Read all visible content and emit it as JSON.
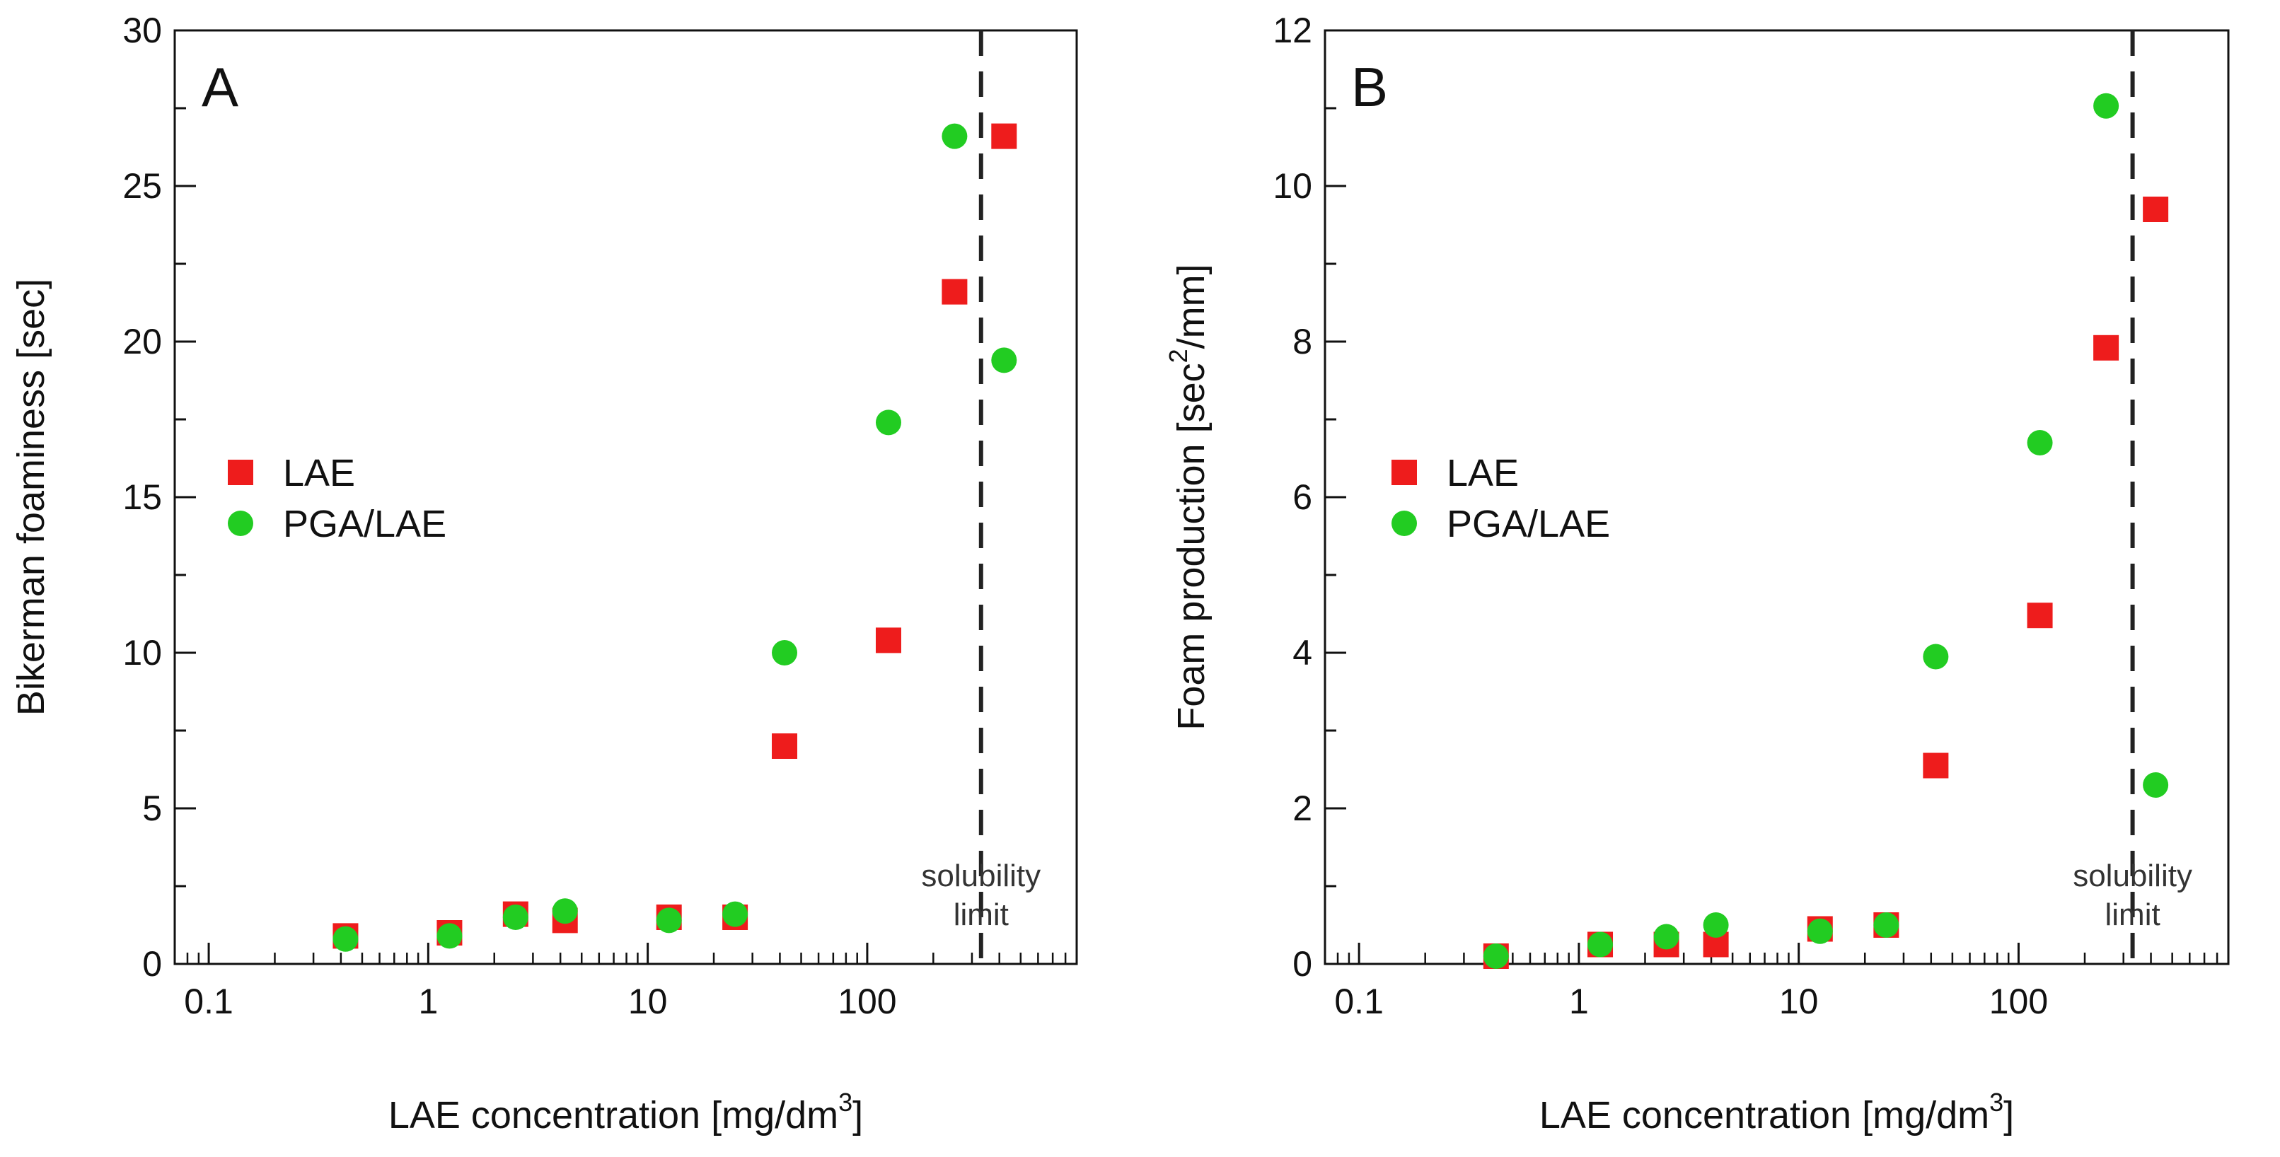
{
  "chart_data": [
    {
      "panel": "A",
      "type": "scatter",
      "x_scale": "log",
      "xlabel": "LAE concentration [mg/dm",
      "xlabel_sup": "3",
      "xlabel_end": "]",
      "ylabel": "Bikerman foaminess [sec]",
      "xlim": [
        0.07,
        900
      ],
      "ylim": [
        0,
        30
      ],
      "x_ticks": [
        0.1,
        1,
        10,
        100
      ],
      "x_tick_labels": [
        "0.1",
        "1",
        "10",
        "100"
      ],
      "y_ticks": [
        0,
        5,
        10,
        15,
        20,
        25,
        30
      ],
      "y_tick_labels": [
        "0",
        "5",
        "10",
        "15",
        "20",
        "25",
        "30"
      ],
      "y_minor_step": 2.5,
      "legend": {
        "position": "center-left",
        "entries": [
          "LAE",
          "PGA/LAE"
        ]
      },
      "annotation": {
        "type": "vline",
        "x": 330,
        "style": "dashed",
        "label_lines": [
          "solubility",
          "limit"
        ]
      },
      "series": [
        {
          "name": "LAE",
          "marker": "square",
          "color": "#ee1c1c",
          "points": [
            [
              0.42,
              0.9
            ],
            [
              1.25,
              1.0
            ],
            [
              2.5,
              1.6
            ],
            [
              4.2,
              1.4
            ],
            [
              12.5,
              1.5
            ],
            [
              25,
              1.5
            ],
            [
              42,
              7.0
            ],
            [
              125,
              10.4
            ],
            [
              250,
              21.6
            ],
            [
              420,
              26.6
            ]
          ]
        },
        {
          "name": "PGA/LAE",
          "marker": "circle",
          "color": "#22cc22",
          "points": [
            [
              0.42,
              0.8
            ],
            [
              1.25,
              0.9
            ],
            [
              2.5,
              1.5
            ],
            [
              4.2,
              1.7
            ],
            [
              12.5,
              1.4
            ],
            [
              25,
              1.6
            ],
            [
              42,
              10.0
            ],
            [
              125,
              17.4
            ],
            [
              250,
              26.6
            ],
            [
              420,
              19.4
            ]
          ]
        }
      ]
    },
    {
      "panel": "B",
      "type": "scatter",
      "x_scale": "log",
      "xlabel": "LAE concentration [mg/dm",
      "xlabel_sup": "3",
      "xlabel_end": "]",
      "ylabel": "Foam production [sec",
      "ylabel_sup": "2",
      "ylabel_end": "/mm]",
      "xlim": [
        0.07,
        900
      ],
      "ylim": [
        0,
        12
      ],
      "x_ticks": [
        0.1,
        1,
        10,
        100
      ],
      "x_tick_labels": [
        "0.1",
        "1",
        "10",
        "100"
      ],
      "y_ticks": [
        0,
        2,
        4,
        6,
        8,
        10,
        12
      ],
      "y_tick_labels": [
        "0",
        "2",
        "4",
        "6",
        "8",
        "10",
        "12"
      ],
      "y_minor_step": 1,
      "legend": {
        "position": "center-left",
        "entries": [
          "LAE",
          "PGA/LAE"
        ]
      },
      "annotation": {
        "type": "vline",
        "x": 330,
        "style": "dashed",
        "label_lines": [
          "solubility",
          "limit"
        ]
      },
      "series": [
        {
          "name": "LAE",
          "marker": "square",
          "color": "#ee1c1c",
          "points": [
            [
              0.42,
              0.1
            ],
            [
              1.25,
              0.25
            ],
            [
              2.5,
              0.25
            ],
            [
              4.2,
              0.25
            ],
            [
              12.5,
              0.45
            ],
            [
              25,
              0.5
            ],
            [
              42,
              2.55
            ],
            [
              125,
              4.48
            ],
            [
              250,
              7.92
            ],
            [
              420,
              9.7
            ]
          ]
        },
        {
          "name": "PGA/LAE",
          "marker": "circle",
          "color": "#22cc22",
          "points": [
            [
              0.42,
              0.1
            ],
            [
              1.25,
              0.25
            ],
            [
              2.5,
              0.35
            ],
            [
              4.2,
              0.5
            ],
            [
              12.5,
              0.42
            ],
            [
              25,
              0.5
            ],
            [
              42,
              3.95
            ],
            [
              125,
              6.7
            ],
            [
              250,
              11.03
            ],
            [
              420,
              2.3
            ]
          ]
        }
      ]
    }
  ]
}
